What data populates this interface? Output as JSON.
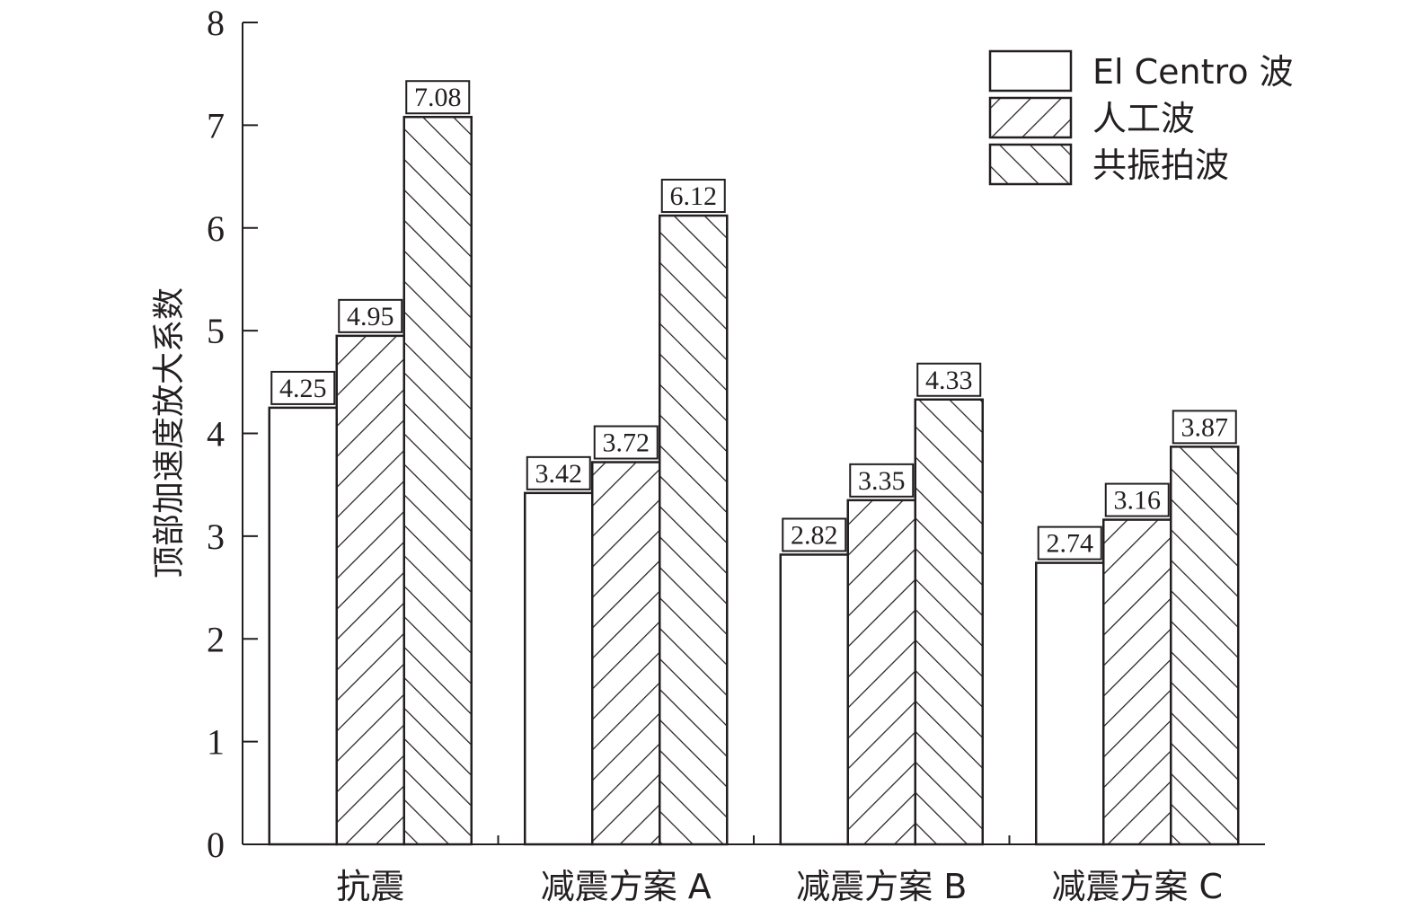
{
  "chart_data": {
    "type": "bar",
    "title": "",
    "xlabel": "",
    "ylabel": "顶部加速度放大系数",
    "ylim": [
      0,
      8
    ],
    "yticks": [
      "0",
      "1",
      "2",
      "3",
      "4",
      "5",
      "6",
      "7",
      "8"
    ],
    "categories": [
      "抗震",
      "减震方案 A",
      "减震方案 B",
      "减震方案 C"
    ],
    "series": [
      {
        "name": "El Centro 波",
        "values": [
          4.25,
          3.42,
          2.82,
          2.74
        ],
        "fill": "none",
        "labels": [
          "4.25",
          "3.42",
          "2.82",
          "2.74"
        ]
      },
      {
        "name": "人工波",
        "values": [
          4.95,
          3.72,
          3.35,
          3.16
        ],
        "fill": "hatch-forward",
        "labels": [
          "4.95",
          "3.72",
          "3.35",
          "3.16"
        ]
      },
      {
        "name": "共振拍波",
        "values": [
          7.08,
          6.12,
          4.33,
          3.87
        ],
        "fill": "hatch-backward",
        "labels": [
          "7.08",
          "6.12",
          "4.33",
          "3.87"
        ]
      }
    ],
    "legend_position": "top-right",
    "grid": false,
    "colors": {
      "ink": "#231f20",
      "background": "#ffffff"
    }
  }
}
